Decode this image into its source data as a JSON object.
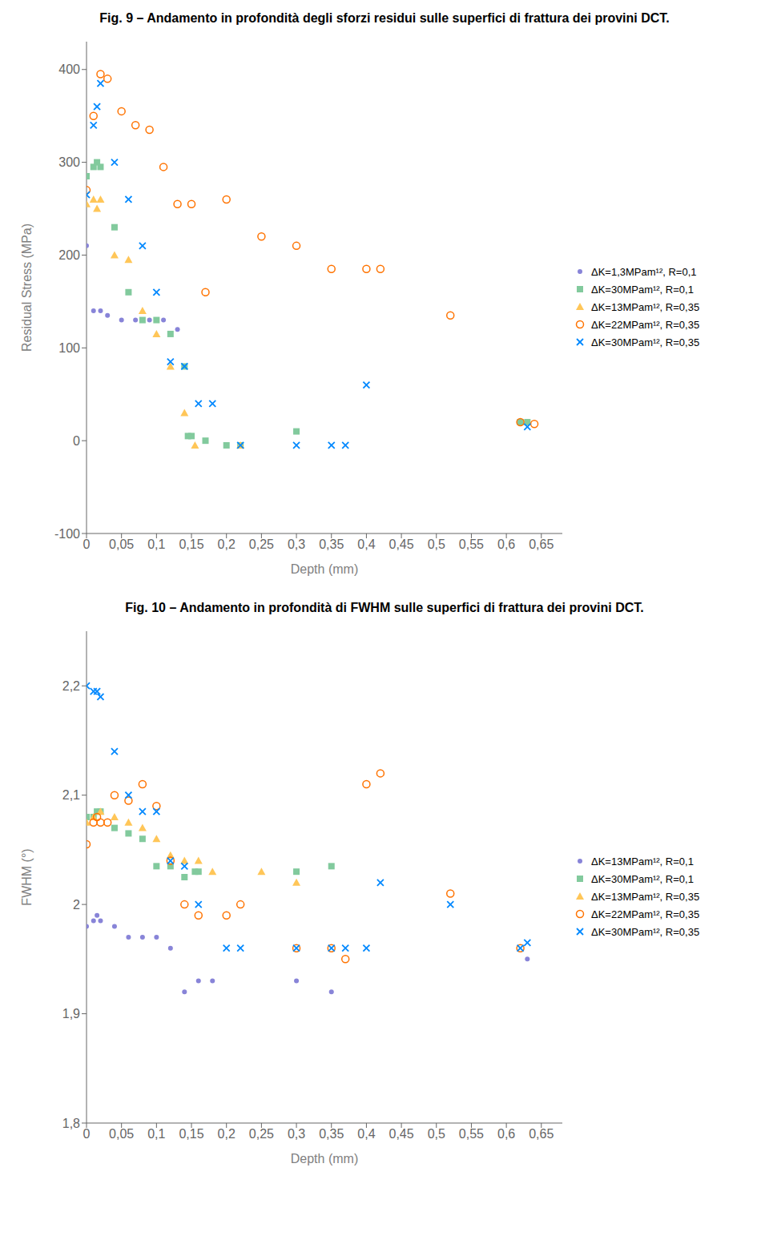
{
  "chart_data": [
    {
      "type": "scatter",
      "title": "Fig. 9 – Andamento in profondità degli sforzi residui sulle superfici di frattura dei provini DCT.",
      "x_label": "Depth (mm)",
      "y_label": "Residual Stress (MPa)",
      "xlim": [
        0,
        0.68
      ],
      "ylim": [
        -100,
        430
      ],
      "xticks": [
        0,
        {
          "value": 0.05,
          "label": "0,05"
        },
        {
          "value": 0.1,
          "label": "0,1"
        },
        {
          "value": 0.15,
          "label": "0,15"
        },
        {
          "value": 0.2,
          "label": "0,2"
        },
        {
          "value": 0.25,
          "label": "0,25"
        },
        {
          "value": 0.3,
          "label": "0,3"
        },
        {
          "value": 0.35,
          "label": "0,35"
        },
        {
          "value": 0.4,
          "label": "0,4"
        },
        {
          "value": 0.45,
          "label": "0,45"
        },
        {
          "value": 0.5,
          "label": "0,5"
        },
        {
          "value": 0.55,
          "label": "0,55"
        },
        {
          "value": 0.6,
          "label": "0,6"
        },
        {
          "value": 0.65,
          "label": "0,65"
        }
      ],
      "yticks": [
        -100,
        0,
        100,
        200,
        300,
        400
      ],
      "grid": false,
      "legend": "right",
      "series": [
        {
          "name": "ΔK=1,3MPam¹², R=0,1",
          "color": "#8884d8",
          "marker": "dot",
          "x": [
            0.0,
            0.01,
            0.02,
            0.03,
            0.05,
            0.07,
            0.09,
            0.11,
            0.13
          ],
          "values": [
            210,
            140,
            140,
            135,
            130,
            130,
            130,
            130,
            120
          ]
        },
        {
          "name": "ΔK=30MPam¹², R=0,1",
          "color": "#82ca9d",
          "marker": "square",
          "x": [
            0.0,
            0.01,
            0.015,
            0.02,
            0.04,
            0.06,
            0.08,
            0.1,
            0.12,
            0.14,
            0.145,
            0.15,
            0.17,
            0.2,
            0.22,
            0.3,
            0.62,
            0.63
          ],
          "values": [
            285,
            295,
            300,
            295,
            230,
            160,
            130,
            130,
            115,
            80,
            5,
            5,
            0,
            -5,
            -5,
            10,
            20,
            20
          ]
        },
        {
          "name": "ΔK=13MPam¹², R=0,35",
          "color": "#ffc658",
          "marker": "triangle",
          "x": [
            0.0,
            0.01,
            0.015,
            0.02,
            0.04,
            0.06,
            0.08,
            0.1,
            0.12,
            0.14,
            0.155,
            0.22
          ],
          "values": [
            255,
            260,
            250,
            260,
            200,
            195,
            140,
            115,
            80,
            30,
            -5,
            -5
          ]
        },
        {
          "name": "ΔK=22MPam¹², R=0,35",
          "color": "#ff7300",
          "marker": "open_circle",
          "x": [
            0.0,
            0.01,
            0.02,
            0.03,
            0.05,
            0.07,
            0.09,
            0.11,
            0.13,
            0.15,
            0.17,
            0.2,
            0.25,
            0.3,
            0.35,
            0.4,
            0.42,
            0.52,
            0.62,
            0.64
          ],
          "values": [
            270,
            350,
            395,
            390,
            355,
            340,
            335,
            295,
            255,
            255,
            160,
            260,
            220,
            210,
            185,
            185,
            185,
            135,
            20,
            18
          ]
        },
        {
          "name": "ΔK=30MPam¹², R=0,35",
          "color": "#0088fe",
          "marker": "x",
          "x": [
            0.0,
            0.01,
            0.015,
            0.02,
            0.04,
            0.06,
            0.08,
            0.1,
            0.12,
            0.14,
            0.16,
            0.18,
            0.22,
            0.3,
            0.35,
            0.37,
            0.4,
            0.63
          ],
          "values": [
            265,
            340,
            360,
            385,
            300,
            260,
            210,
            160,
            85,
            80,
            40,
            40,
            -5,
            -5,
            -5,
            -5,
            60,
            15
          ]
        }
      ]
    },
    {
      "type": "scatter",
      "title": "Fig. 10 – Andamento in profondità di FWHM sulle superfici di frattura dei provini DCT.",
      "x_label": "Depth (mm)",
      "y_label": "FWHM (°)",
      "xlim": [
        0,
        0.68
      ],
      "ylim": [
        1.8,
        2.25
      ],
      "xticks": [
        0,
        {
          "value": 0.05,
          "label": "0,05"
        },
        {
          "value": 0.1,
          "label": "0,1"
        },
        {
          "value": 0.15,
          "label": "0,15"
        },
        {
          "value": 0.2,
          "label": "0,2"
        },
        {
          "value": 0.25,
          "label": "0,25"
        },
        {
          "value": 0.3,
          "label": "0,3"
        },
        {
          "value": 0.35,
          "label": "0,35"
        },
        {
          "value": 0.4,
          "label": "0,4"
        },
        {
          "value": 0.45,
          "label": "0,45"
        },
        {
          "value": 0.5,
          "label": "0,5"
        },
        {
          "value": 0.55,
          "label": "0,55"
        },
        {
          "value": 0.6,
          "label": "0,6"
        },
        {
          "value": 0.65,
          "label": "0,65"
        }
      ],
      "yticks": [
        {
          "value": 1.8,
          "label": "1,8"
        },
        {
          "value": 1.9,
          "label": "1,9"
        },
        2,
        {
          "value": 2.1,
          "label": "2,1"
        },
        {
          "value": 2.2,
          "label": "2,2"
        }
      ],
      "grid": false,
      "legend": "right",
      "series": [
        {
          "name": "ΔK=13MPam¹², R=0,1",
          "color": "#8884d8",
          "marker": "dot",
          "x": [
            0.0,
            0.01,
            0.015,
            0.02,
            0.04,
            0.06,
            0.08,
            0.1,
            0.12,
            0.14,
            0.16,
            0.18,
            0.3,
            0.35,
            0.63
          ],
          "values": [
            1.98,
            1.985,
            1.99,
            1.985,
            1.98,
            1.97,
            1.97,
            1.97,
            1.96,
            1.92,
            1.93,
            1.93,
            1.93,
            1.92,
            1.95
          ]
        },
        {
          "name": "ΔK=30MPam¹², R=0,1",
          "color": "#82ca9d",
          "marker": "square",
          "x": [
            0.0,
            0.01,
            0.015,
            0.02,
            0.04,
            0.06,
            0.08,
            0.1,
            0.12,
            0.14,
            0.155,
            0.16,
            0.3,
            0.35
          ],
          "values": [
            2.08,
            2.08,
            2.085,
            2.085,
            2.07,
            2.065,
            2.06,
            2.035,
            2.035,
            2.025,
            2.03,
            2.03,
            2.03,
            2.035
          ]
        },
        {
          "name": "ΔK=13MPam¹², R=0,35",
          "color": "#ffc658",
          "marker": "triangle",
          "x": [
            0.0,
            0.01,
            0.02,
            0.04,
            0.06,
            0.08,
            0.1,
            0.12,
            0.14,
            0.16,
            0.18,
            0.25,
            0.3
          ],
          "values": [
            2.075,
            2.08,
            2.085,
            2.08,
            2.075,
            2.07,
            2.06,
            2.045,
            2.04,
            2.04,
            2.03,
            2.03,
            2.02
          ]
        },
        {
          "name": "ΔK=22MPam¹², R=0,35",
          "color": "#ff7300",
          "marker": "open_circle",
          "x": [
            0.0,
            0.01,
            0.015,
            0.02,
            0.03,
            0.04,
            0.06,
            0.08,
            0.1,
            0.12,
            0.14,
            0.16,
            0.2,
            0.22,
            0.3,
            0.35,
            0.37,
            0.4,
            0.42,
            0.52,
            0.62
          ],
          "values": [
            2.055,
            2.075,
            2.08,
            2.075,
            2.075,
            2.1,
            2.095,
            2.11,
            2.09,
            2.04,
            2.0,
            1.99,
            1.99,
            2.0,
            1.96,
            1.96,
            1.95,
            2.11,
            2.12,
            2.01,
            1.96
          ]
        },
        {
          "name": "ΔK=30MPam¹², R=0,35",
          "color": "#0088fe",
          "marker": "x",
          "x": [
            0.0,
            0.01,
            0.015,
            0.02,
            0.04,
            0.06,
            0.08,
            0.1,
            0.12,
            0.14,
            0.16,
            0.2,
            0.22,
            0.3,
            0.35,
            0.37,
            0.4,
            0.42,
            0.52,
            0.62,
            0.63
          ],
          "values": [
            2.2,
            2.195,
            2.195,
            2.19,
            2.14,
            2.1,
            2.085,
            2.085,
            2.04,
            2.035,
            2.0,
            1.96,
            1.96,
            1.96,
            1.96,
            1.96,
            1.96,
            2.02,
            2.0,
            1.96,
            1.965
          ]
        }
      ]
    }
  ]
}
